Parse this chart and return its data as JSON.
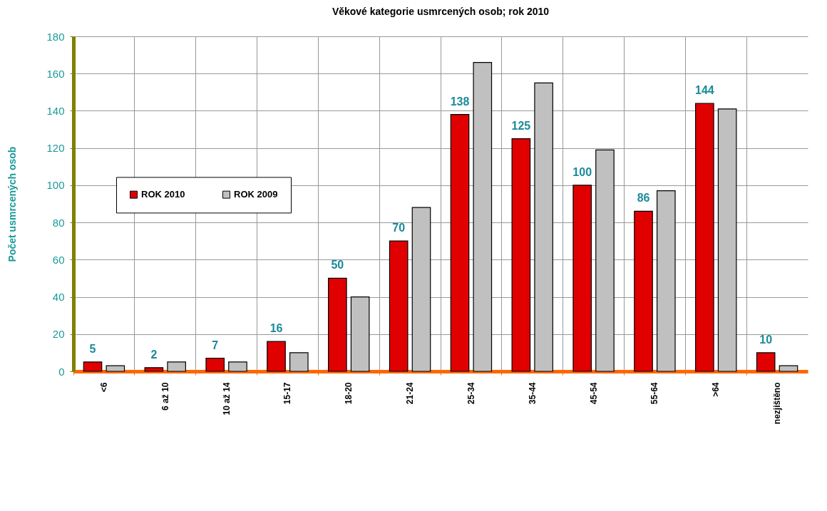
{
  "chart_data": {
    "type": "bar",
    "title": "Věkové kategorie usmrcených osob; rok  2010",
    "ylabel": "Počet usmrcených osob",
    "categories": [
      "<6",
      "6 až 10",
      "10 až 14",
      "15-17",
      "18-20",
      "21-24",
      "25-34",
      "35-44",
      "45-54",
      "55-64",
      ">64",
      "nezjištěno"
    ],
    "series": [
      {
        "name": "ROK 2010",
        "color": "#e00000",
        "values": [
          5,
          2,
          7,
          16,
          50,
          70,
          138,
          125,
          100,
          86,
          144,
          10
        ],
        "value_labels": [
          "5",
          "2",
          "7",
          "16",
          "50",
          "70",
          "138",
          "125",
          "100",
          "86",
          "144",
          "10"
        ]
      },
      {
        "name": "ROK 2009",
        "color": "#c0c0c0",
        "values": [
          3,
          5,
          5,
          10,
          40,
          88,
          166,
          155,
          119,
          97,
          141,
          3
        ]
      }
    ],
    "ylim": [
      0,
      180
    ],
    "yticks": [
      0,
      20,
      40,
      60,
      80,
      100,
      120,
      140,
      160,
      180
    ],
    "grid": true,
    "legend": "left"
  }
}
